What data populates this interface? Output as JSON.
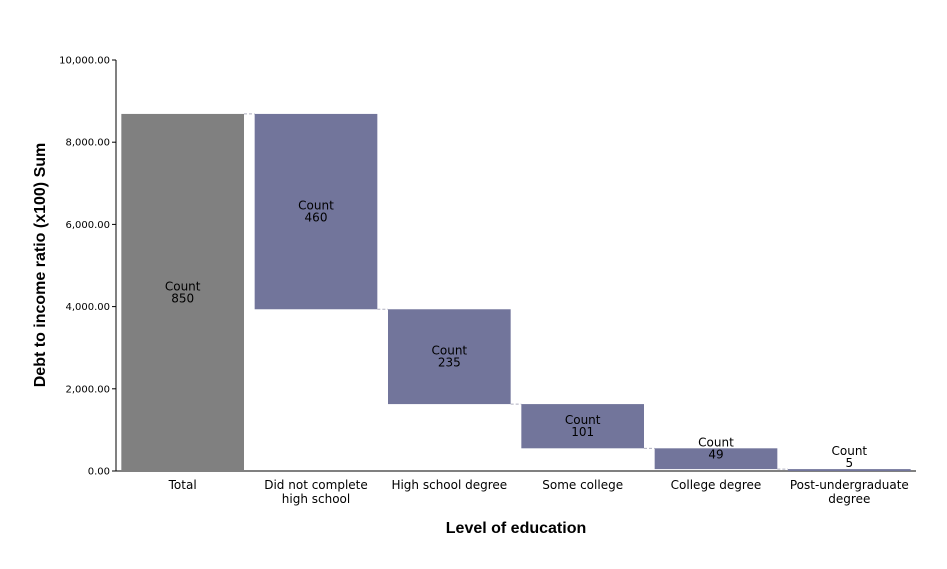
{
  "chart_data": {
    "type": "bar",
    "subtype": "waterfall",
    "xlabel": "Level of education",
    "ylabel": "Debt to income ratio (x100) Sum",
    "ylim": [
      0,
      10000
    ],
    "yticks": [
      "0.00",
      "2,000.00",
      "4,000.00",
      "6,000.00",
      "8,000.00",
      "10,000.00"
    ],
    "ytick_values": [
      0,
      2000,
      4000,
      6000,
      8000,
      10000
    ],
    "categories": [
      [
        "Total"
      ],
      [
        "Did not complete",
        "high school"
      ],
      [
        "High school degree"
      ],
      [
        "Some college"
      ],
      [
        "College degree"
      ],
      [
        "Post-undergraduate",
        "degree"
      ]
    ],
    "bars": [
      {
        "start": 0,
        "end": 8688,
        "count_label": "Count",
        "count": "850",
        "role": "total"
      },
      {
        "start": 3935,
        "end": 8688,
        "count_label": "Count",
        "count": "460",
        "role": "step"
      },
      {
        "start": 1628,
        "end": 3935,
        "count_label": "Count",
        "count": "235",
        "role": "step"
      },
      {
        "start": 552,
        "end": 1628,
        "count_label": "Count",
        "count": "101",
        "role": "step"
      },
      {
        "start": 46,
        "end": 552,
        "count_label": "Count",
        "count": "49",
        "role": "step"
      },
      {
        "start": 0,
        "end": 46,
        "count_label": "Count",
        "count": "5",
        "role": "step"
      }
    ],
    "colors": {
      "total": "#808080",
      "step": "#72759b",
      "connector": "#b0b0c0"
    }
  }
}
